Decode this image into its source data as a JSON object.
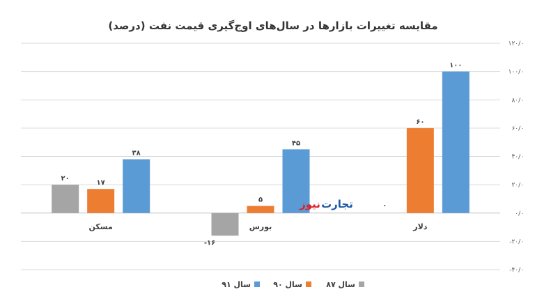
{
  "chart_data": {
    "type": "bar",
    "title": "مقایسه تغییرات بازارها در سال‌های اوج‌گیری قیمت نفت (درصد)",
    "categories": [
      "مسکن",
      "بورس",
      "دلار"
    ],
    "series": [
      {
        "name": "سال ۸۷",
        "values": [
          20,
          -16,
          0
        ],
        "labels": [
          "۲۰",
          "-۱۶",
          "۰"
        ],
        "color": "#a5a5a5"
      },
      {
        "name": "سال ۹۰",
        "values": [
          17,
          5,
          60
        ],
        "labels": [
          "۱۷",
          "۵",
          "۶۰"
        ],
        "color": "#ed7d31"
      },
      {
        "name": "سال ۹۱",
        "values": [
          38,
          45,
          100
        ],
        "labels": [
          "۳۸",
          "۴۵",
          "۱۰۰"
        ],
        "color": "#5b9bd5"
      }
    ],
    "ylim": [
      -40,
      120
    ],
    "yticks": [
      -40,
      -20,
      0,
      20,
      40,
      60,
      80,
      100,
      120
    ],
    "ytick_labels": [
      "-۴۰/۰",
      "-۲۰/۰",
      "۰/۰",
      "۲۰/۰",
      "۴۰/۰",
      "۶۰/۰",
      "۸۰/۰",
      "۱۰۰/۰",
      "۱۲۰/۰"
    ],
    "yaxis_side": "right",
    "grid": true,
    "legend_position": "bottom"
  },
  "watermark": {
    "part1": "نیوز",
    "part2": "تجارت"
  }
}
